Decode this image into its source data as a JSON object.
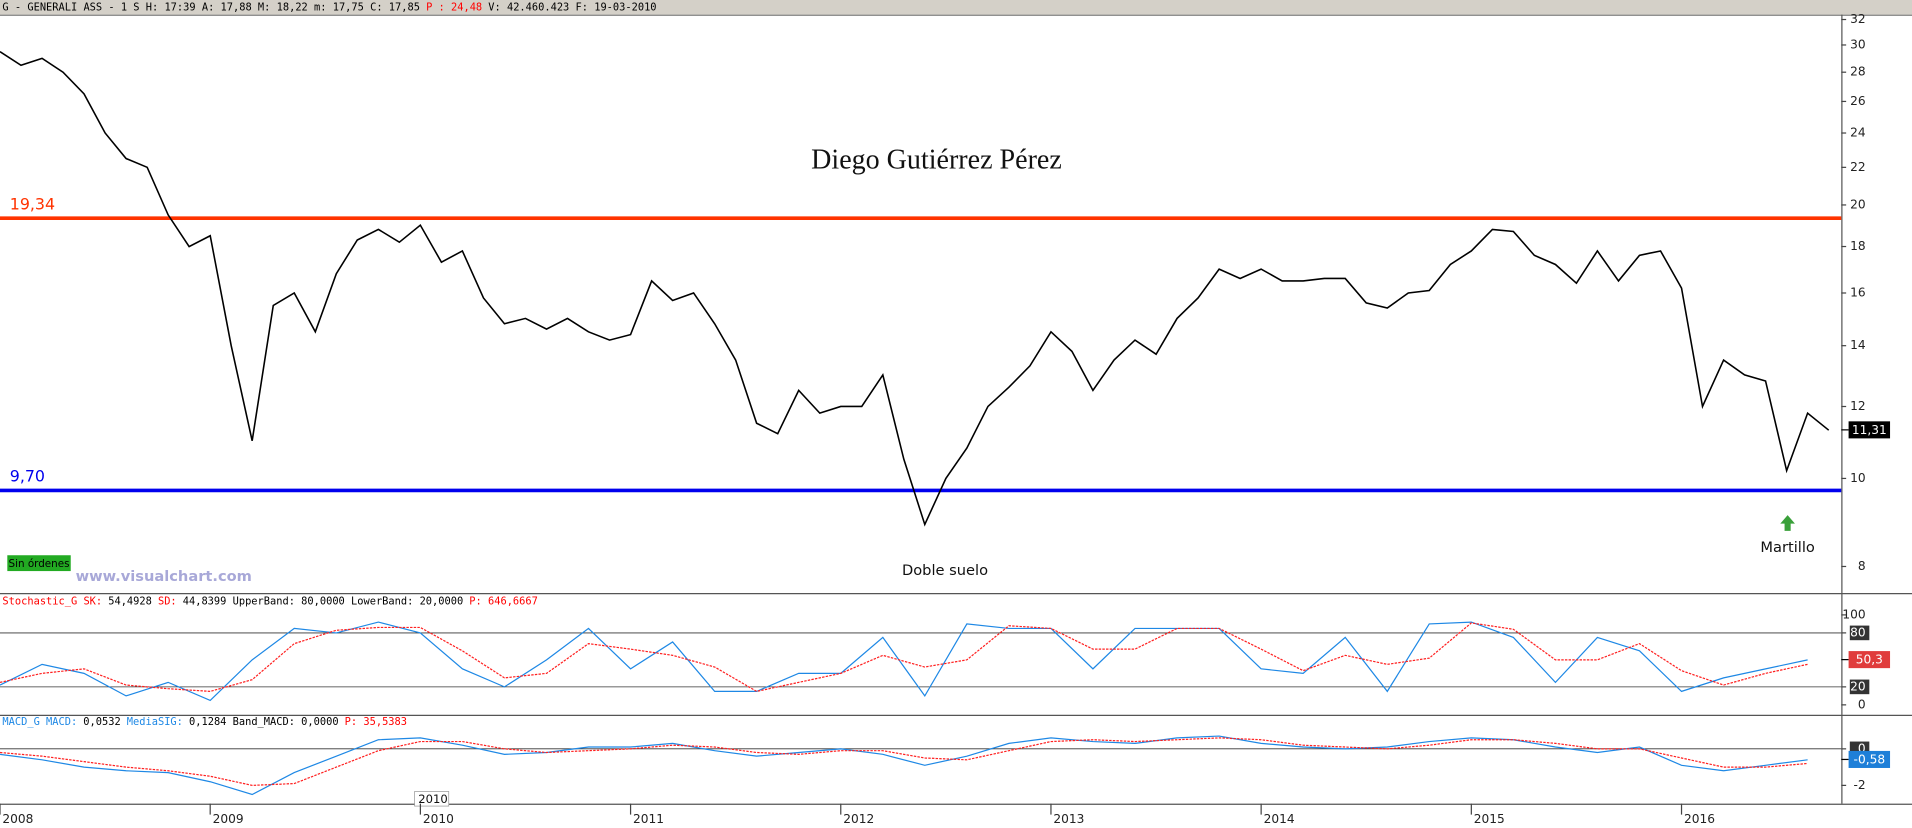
{
  "cursor_label": "2010",
  "chart_data": [
    {
      "type": "line",
      "header": [
        {
          "text": "G - GENERALI ASS -  1 S H: 17:39 A: 17,88 M: 18,22 m: 17,75 C: 17,85",
          "color": "#000000"
        },
        {
          "text": "P : 24,48",
          "color": "#ff0000"
        },
        {
          "text": "V: 42.460.423 F: 19-03-2010",
          "color": "#000000"
        }
      ],
      "title": "Diego Gutiérrez Pérez",
      "annotations": {
        "double_bottom": "Doble suelo",
        "hammer": "Martillo"
      },
      "status": "Sin órdenes",
      "watermark": "www.visualchart.com",
      "log_scale": true,
      "xlim": [
        2008,
        2016.76
      ],
      "xticks": [
        2008,
        2009,
        2010,
        2011,
        2012,
        2013,
        2014,
        2015,
        2016
      ],
      "ylim": [
        7.48,
        32.4
      ],
      "yticks": [
        8,
        10,
        12,
        14,
        16,
        18,
        20,
        22,
        24,
        26,
        28,
        30,
        32
      ],
      "levels": [
        {
          "value": 19.34,
          "label": "19,34",
          "color": "#ff3300"
        },
        {
          "value": 9.7,
          "label": "9,70",
          "color": "#0000ee"
        }
      ],
      "last_value": {
        "value": 11.31,
        "label": "11,31",
        "box_color": "#000000"
      },
      "x": [
        2008,
        2008.1,
        2008.2,
        2008.3,
        2008.4,
        2008.5,
        2008.6,
        2008.7,
        2008.8,
        2008.9,
        2009,
        2009.1,
        2009.2,
        2009.3,
        2009.4,
        2009.5,
        2009.6,
        2009.7,
        2009.8,
        2009.9,
        2010,
        2010.1,
        2010.2,
        2010.3,
        2010.4,
        2010.5,
        2010.6,
        2010.7,
        2010.8,
        2010.9,
        2011,
        2011.1,
        2011.2,
        2011.3,
        2011.4,
        2011.5,
        2011.6,
        2011.7,
        2011.8,
        2011.9,
        2012,
        2012.1,
        2012.2,
        2012.3,
        2012.4,
        2012.5,
        2012.6,
        2012.7,
        2012.8,
        2012.9,
        2013,
        2013.1,
        2013.2,
        2013.3,
        2013.4,
        2013.5,
        2013.6,
        2013.7,
        2013.8,
        2013.9,
        2014,
        2014.1,
        2014.2,
        2014.3,
        2014.4,
        2014.5,
        2014.6,
        2014.7,
        2014.8,
        2014.9,
        2015,
        2015.1,
        2015.2,
        2015.3,
        2015.4,
        2015.5,
        2015.6,
        2015.7,
        2015.8,
        2015.9,
        2016,
        2016.1,
        2016.2,
        2016.3,
        2016.4,
        2016.5,
        2016.6,
        2016.7
      ],
      "series": [
        {
          "color": "#000000",
          "values": [
            29.5,
            28.5,
            29,
            28,
            26.5,
            24,
            22.5,
            22,
            19.5,
            18,
            18.5,
            14,
            11,
            15.5,
            16,
            14.5,
            16.8,
            18.3,
            18.8,
            18.2,
            19,
            17.3,
            17.8,
            15.8,
            14.8,
            15,
            14.6,
            15,
            14.5,
            14.2,
            14.4,
            16.5,
            15.7,
            16,
            14.8,
            13.5,
            11.5,
            11.2,
            12.5,
            11.8,
            12,
            12,
            13,
            10.5,
            8.9,
            10,
            10.8,
            12,
            12.6,
            13.3,
            14.5,
            13.8,
            12.5,
            13.5,
            14.2,
            13.7,
            15,
            15.8,
            17,
            16.6,
            17,
            16.5,
            16.5,
            16.6,
            16.6,
            15.6,
            15.4,
            16,
            16.1,
            17.2,
            17.8,
            18.8,
            18.7,
            17.6,
            17.2,
            16.4,
            17.8,
            16.5,
            17.6,
            17.8,
            16.2,
            12,
            13.5,
            13,
            12.8,
            10.2,
            11.8,
            11.3
          ]
        }
      ]
    },
    {
      "type": "line",
      "header": [
        {
          "text": "Stochastic_G SK:",
          "color": "#ff0000"
        },
        {
          "text": "54,4928",
          "color": "#000000"
        },
        {
          "text": "SD:",
          "color": "#ff0000"
        },
        {
          "text": "44,8399 UpperBand: 80,0000 LowerBand: 20,0000",
          "color": "#000000"
        },
        {
          "text": "P: 646,6667",
          "color": "#ff0000"
        }
      ],
      "xlim": [
        2008,
        2016.76
      ],
      "ylim": [
        -11,
        123
      ],
      "yticks": [
        0,
        20,
        80,
        100
      ],
      "bands": [
        80,
        20
      ],
      "last_value": {
        "value": 50.3,
        "label": "50,3",
        "box_color": "#e03c3c"
      },
      "x": [
        2008,
        2008.2,
        2008.4,
        2008.6,
        2008.8,
        2009,
        2009.2,
        2009.4,
        2009.6,
        2009.8,
        2010,
        2010.2,
        2010.4,
        2010.6,
        2010.8,
        2011,
        2011.2,
        2011.4,
        2011.6,
        2011.8,
        2012,
        2012.2,
        2012.4,
        2012.6,
        2012.8,
        2013,
        2013.2,
        2013.4,
        2013.6,
        2013.8,
        2014,
        2014.2,
        2014.4,
        2014.6,
        2014.8,
        2015,
        2015.2,
        2015.4,
        2015.6,
        2015.8,
        2016,
        2016.2,
        2016.4,
        2016.6
      ],
      "series": [
        {
          "color": "#1e88e5",
          "values": [
            22,
            45,
            35,
            10,
            25,
            5,
            50,
            85,
            80,
            92,
            80,
            40,
            20,
            50,
            85,
            40,
            70,
            15,
            15,
            35,
            35,
            75,
            10,
            90,
            85,
            85,
            40,
            85,
            85,
            85,
            40,
            35,
            75,
            15,
            90,
            92,
            75,
            25,
            75,
            60,
            15,
            30,
            40,
            50
          ]
        },
        {
          "color": "#ff2020",
          "values": [
            25,
            35,
            40,
            22,
            18,
            15,
            28,
            68,
            83,
            86,
            86,
            60,
            30,
            35,
            68,
            62,
            55,
            42,
            15,
            25,
            35,
            55,
            42,
            50,
            88,
            85,
            62,
            62,
            85,
            85,
            62,
            38,
            55,
            45,
            52,
            91,
            84,
            50,
            50,
            68,
            38,
            22,
            35,
            45
          ]
        }
      ]
    },
    {
      "type": "line",
      "header": [
        {
          "text": "MACD_G MACD:",
          "color": "#1e88e5"
        },
        {
          "text": "0,0532",
          "color": "#000000"
        },
        {
          "text": "MediaSIG:",
          "color": "#1e88e5"
        },
        {
          "text": "0,1284 Band_MACD: 0,0000",
          "color": "#000000"
        },
        {
          "text": "P: 35,5383",
          "color": "#ff0000"
        }
      ],
      "xlim": [
        2008,
        2016.76
      ],
      "ylim": [
        -3,
        1.8
      ],
      "yticks": [
        -2,
        0
      ],
      "bands": [
        0
      ],
      "last_value": {
        "value": -0.58,
        "label": "-0,58",
        "box_color": "#1e7fd8"
      },
      "x": [
        2008,
        2008.2,
        2008.4,
        2008.6,
        2008.8,
        2009,
        2009.2,
        2009.4,
        2009.6,
        2009.8,
        2010,
        2010.2,
        2010.4,
        2010.6,
        2010.8,
        2011,
        2011.2,
        2011.4,
        2011.6,
        2011.8,
        2012,
        2012.2,
        2012.4,
        2012.6,
        2012.8,
        2013,
        2013.2,
        2013.4,
        2013.6,
        2013.8,
        2014,
        2014.2,
        2014.4,
        2014.6,
        2014.8,
        2015,
        2015.2,
        2015.4,
        2015.6,
        2015.8,
        2016,
        2016.2,
        2016.4,
        2016.6
      ],
      "series": [
        {
          "color": "#1e88e5",
          "values": [
            -0.3,
            -0.6,
            -1,
            -1.2,
            -1.3,
            -1.8,
            -2.5,
            -1.3,
            -0.4,
            0.5,
            0.6,
            0.2,
            -0.3,
            -0.2,
            0.1,
            0.1,
            0.3,
            -0.1,
            -0.4,
            -0.2,
            0,
            -0.3,
            -0.9,
            -0.4,
            0.3,
            0.6,
            0.4,
            0.3,
            0.6,
            0.7,
            0.3,
            0.1,
            0,
            0.1,
            0.4,
            0.6,
            0.5,
            0.1,
            -0.2,
            0.1,
            -0.9,
            -1.2,
            -0.9,
            -0.6
          ]
        },
        {
          "color": "#ff2020",
          "values": [
            -0.2,
            -0.4,
            -0.7,
            -1,
            -1.2,
            -1.5,
            -2,
            -1.9,
            -1,
            -0.1,
            0.4,
            0.4,
            0,
            -0.2,
            -0.1,
            0,
            0.2,
            0.1,
            -0.2,
            -0.3,
            -0.1,
            -0.1,
            -0.5,
            -0.6,
            -0.1,
            0.4,
            0.5,
            0.4,
            0.5,
            0.6,
            0.5,
            0.2,
            0.1,
            0,
            0.2,
            0.5,
            0.5,
            0.3,
            0,
            0,
            -0.5,
            -1,
            -1,
            -0.8
          ]
        }
      ]
    }
  ]
}
